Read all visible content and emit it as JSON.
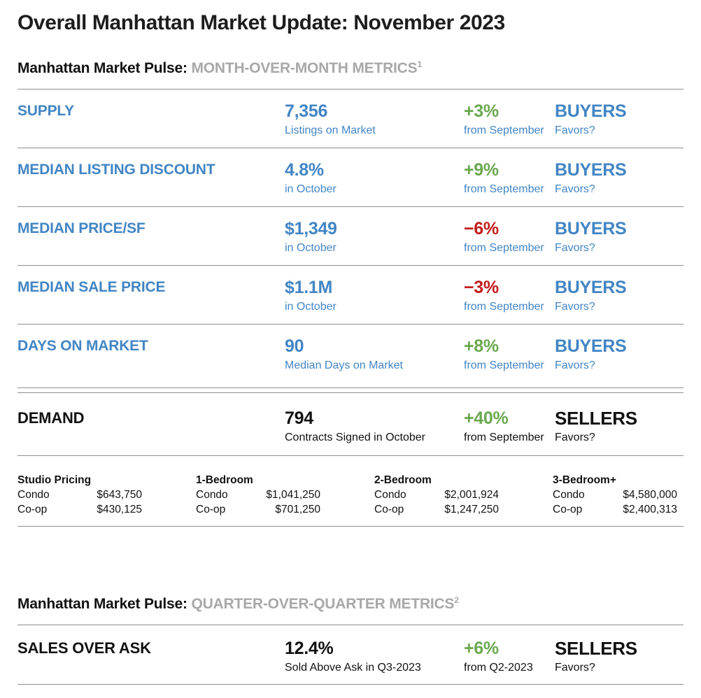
{
  "page": {
    "title": "Overall Manhattan Market Update: November 2023"
  },
  "colors": {
    "accent_blue": "#4285c4",
    "positive_green": "#6aa84f",
    "negative_red": "#c41a1a",
    "muted_caps_gray": "#a8a8a8",
    "rule_gray": "#8f8f8f",
    "text_dark": "#111111"
  },
  "sections": [
    {
      "heading_prefix": "Manhattan Market Pulse:",
      "heading_caps": "MONTH-OVER-MONTH METRICS",
      "footnote": "1",
      "rows": [
        {
          "label": "SUPPLY",
          "value": "7,356",
          "value_sub": "Listings on Market",
          "change": "+3%",
          "change_sub": "from September",
          "favors": "BUYERS",
          "favors_sub": "Favors?"
        },
        {
          "label": "MEDIAN LISTING DISCOUNT",
          "value": "4.8%",
          "value_sub": "in October",
          "change": "+9%",
          "change_sub": "from September",
          "favors": "BUYERS",
          "favors_sub": "Favors?"
        },
        {
          "label": "MEDIAN PRICE/SF",
          "value": "$1,349",
          "value_sub": "in October",
          "change": "−6%",
          "change_sub": "from September",
          "favors": "BUYERS",
          "favors_sub": "Favors?"
        },
        {
          "label": "MEDIAN SALE PRICE",
          "value": "$1.1M",
          "value_sub": "in October",
          "change": "−3%",
          "change_sub": "from September",
          "favors": "BUYERS",
          "favors_sub": "Favors?"
        },
        {
          "label": "DAYS ON MARKET",
          "value": "90",
          "value_sub": "Median Days on Market",
          "change": "+8%",
          "change_sub": "from September",
          "favors": "BUYERS",
          "favors_sub": "Favors?"
        },
        {
          "label": "DEMAND",
          "value": "794",
          "value_sub": "Contracts Signed in October",
          "change": "+40%",
          "change_sub": "from September",
          "favors": "SELLERS",
          "favors_sub": "Favors?"
        }
      ]
    },
    {
      "heading_prefix": "Manhattan Market Pulse:",
      "heading_caps": "QUARTER-OVER-QUARTER METRICS",
      "footnote": "2",
      "rows": [
        {
          "label": "SALES OVER ASK",
          "value": "12.4%",
          "value_sub": "Sold Above Ask in Q3-2023",
          "change": "+6%",
          "change_sub": "from Q2-2023",
          "favors": "SELLERS",
          "favors_sub": "Favors?"
        }
      ]
    }
  ],
  "pricing": {
    "groups": [
      {
        "header": "Studio Pricing",
        "rows": [
          {
            "type": "Condo",
            "price": "$643,750"
          },
          {
            "type": "Co-op",
            "price": "$430,125"
          }
        ]
      },
      {
        "header": "1-Bedroom",
        "rows": [
          {
            "type": "Condo",
            "price": "$1,041,250"
          },
          {
            "type": "Co-op",
            "price": "$701,250"
          }
        ]
      },
      {
        "header": "2-Bedroom",
        "rows": [
          {
            "type": "Condo",
            "price": "$2,001,924"
          },
          {
            "type": "Co-op",
            "price": "$1,247,250"
          }
        ]
      },
      {
        "header": "3-Bedroom+",
        "rows": [
          {
            "type": "Condo",
            "price": "$4,580,000"
          },
          {
            "type": "Co-op",
            "price": "$2,400,313"
          }
        ]
      }
    ]
  }
}
